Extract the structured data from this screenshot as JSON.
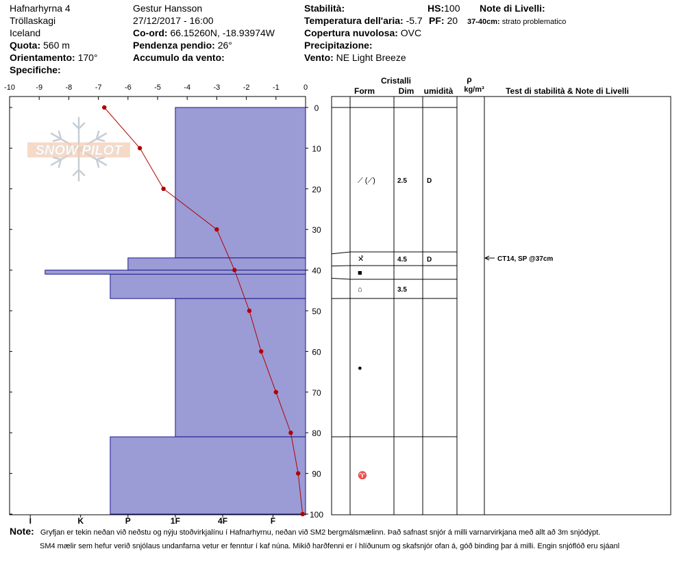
{
  "header": {
    "site": "Hafnarhyrna 4",
    "region": "Tröllaskagi",
    "country": "Iceland",
    "elev_label": "Quota:",
    "elev_value": "560 m",
    "aspect_label": "Orientamento:",
    "aspect_value": "170°",
    "specifics_label": "Specifiche:",
    "observer": "Gestur Hansson",
    "datetime": "27/12/2017 - 16:00",
    "coord_label": "Co-ord:",
    "coord_value": "66.15260N, -18.93974W",
    "slope_label": "Pendenza pendio:",
    "slope_value": "26°",
    "wind_load_label": "Accumulo da vento:",
    "stability_label": "Stabilità:",
    "air_temp_label": "Temperatura dell'aria:",
    "air_temp_value": "-5.7",
    "cloud_label": "Copertura nuvolosa:",
    "cloud_value": "OVC",
    "precip_label": "Precipitazione:",
    "wind_label": "Vento:",
    "wind_value": "NE Light Breeze",
    "hs_label": "HS:",
    "hs_value": "100",
    "pf_label": "PF:",
    "pf_value": "20",
    "layer_notes_label": "Note di Livelli:",
    "layer_note_depth": "37-40cm:",
    "layer_note_text": "strato problematico"
  },
  "table_headers": {
    "crystals": "Cristalli",
    "form": "Form",
    "size": "Dim",
    "moisture": "umidità",
    "density_symbol": "ρ",
    "density_unit": "kg/m³",
    "tests": "Test di stabilità & Note di Livelli"
  },
  "layers": [
    {
      "top": 36,
      "bottom": 39,
      "form": "✕̂",
      "size": "4.5",
      "moisture": "D"
    },
    {
      "top": 39,
      "bottom": 42,
      "form": "■",
      "size": "",
      "moisture": ""
    },
    {
      "top": 42,
      "bottom": 47,
      "form": "⌂",
      "size": "3.5",
      "moisture": ""
    }
  ],
  "extra_rows": [
    {
      "depth": 20,
      "form": "⟋ (⟋)",
      "size": "2.5",
      "moisture": "D"
    },
    {
      "depth": 64,
      "form": "●",
      "size": "",
      "moisture": ""
    },
    {
      "depth": 90,
      "form": "♈",
      "size": "",
      "moisture": ""
    }
  ],
  "stability_test": {
    "depth": 37,
    "text": "CT14, SP @37cm"
  },
  "notes": {
    "label": "Note:",
    "line1": "Gryfjan er tekin neðan við neðstu og nýju stoðvirkjalínu í Hafnarhyrnu, neðan við SM2 bergmálsmælinn. Það safnast snjór á milli varnarvirkjana með allt að 3m snjódýpt.",
    "line2": "SM4 mælir sem hefur verið snjólaus undanfarna vetur er fenntur í kaf núna. Mikið harðfenni er í hlíðunum og skafsnjór ofan á, góð binding þar á milli. Engin snjóflóð eru sjáanl"
  },
  "logo_text": "SNOW PILOT",
  "colors": {
    "hardness_fill": "#9b9bd6",
    "hardness_stroke": "#1a1a8c",
    "temp_line": "#b00000"
  },
  "chart_data": {
    "type": "bar",
    "temp_axis": {
      "min": -10,
      "max": 0,
      "ticks": [
        "-10",
        "-9",
        "-8",
        "-7",
        "-6",
        "-5",
        "-4",
        "-3",
        "-2",
        "-1",
        "0"
      ]
    },
    "depth_axis": {
      "min": 0,
      "max": 100,
      "ticks": [
        "0",
        "10",
        "20",
        "30",
        "40",
        "50",
        "60",
        "70",
        "80",
        "90",
        "100"
      ]
    },
    "hardness_axis": {
      "ticks": [
        "I",
        "K",
        "P",
        "1F",
        "4F",
        "F"
      ]
    },
    "hardness_profile": [
      {
        "top": 0,
        "bottom": 37,
        "temp_equiv": -4.4
      },
      {
        "top": 37,
        "bottom": 40,
        "temp_equiv": -6.0
      },
      {
        "top": 40,
        "bottom": 41,
        "temp_equiv": -8.8
      },
      {
        "top": 41,
        "bottom": 47,
        "temp_equiv": -6.6
      },
      {
        "top": 47,
        "bottom": 81,
        "temp_equiv": -4.4
      },
      {
        "top": 81,
        "bottom": 100,
        "temp_equiv": -6.6
      }
    ],
    "temperature_profile": {
      "depth": [
        0,
        10,
        20,
        30,
        40,
        50,
        60,
        70,
        80,
        90,
        100
      ],
      "temp": [
        -6.8,
        -5.6,
        -4.8,
        -3.0,
        -2.4,
        -1.9,
        -1.5,
        -1.0,
        -0.5,
        -0.25,
        -0.1
      ]
    }
  }
}
